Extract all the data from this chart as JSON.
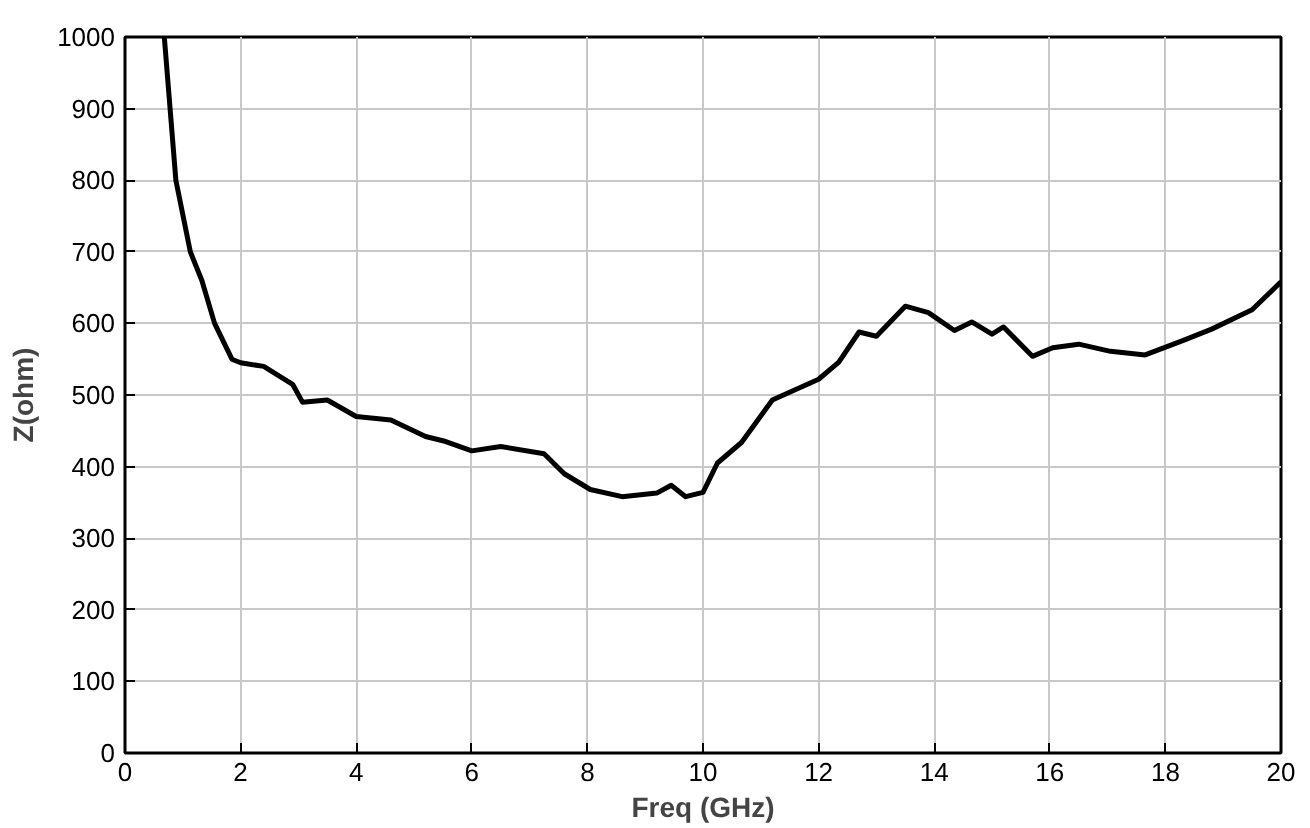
{
  "chart_data": {
    "type": "line",
    "xlabel": "Freq (GHz)",
    "ylabel": "Z(ohm)",
    "xlim": [
      0,
      20
    ],
    "ylim": [
      0,
      1000
    ],
    "xticks": [
      0,
      2,
      4,
      6,
      8,
      10,
      12,
      14,
      16,
      18,
      20
    ],
    "yticks": [
      0,
      100,
      200,
      300,
      400,
      500,
      600,
      700,
      800,
      900,
      1000
    ],
    "grid": true,
    "line_style": "solid",
    "series": [
      {
        "color": "#000000",
        "x": [
          0.68,
          0.88,
          1.13,
          1.33,
          1.55,
          1.85,
          2.0,
          2.4,
          2.9,
          3.07,
          3.5,
          4.0,
          4.6,
          5.2,
          5.55,
          6.0,
          6.5,
          7.25,
          7.6,
          8.05,
          8.6,
          9.2,
          9.45,
          9.7,
          10.0,
          10.25,
          10.67,
          11.2,
          12.0,
          12.35,
          12.7,
          13.0,
          13.5,
          13.9,
          14.35,
          14.65,
          15.0,
          15.2,
          15.7,
          16.05,
          16.5,
          17.05,
          17.65,
          18.3,
          18.8,
          19.5,
          20.0
        ],
        "values": [
          1000,
          800,
          700,
          660,
          600,
          550,
          545,
          540,
          515,
          490,
          493,
          470,
          465,
          442,
          435,
          422,
          428,
          418,
          390,
          368,
          358,
          363,
          374,
          358,
          364,
          405,
          434,
          493,
          522,
          546,
          588,
          582,
          624,
          615,
          590,
          602,
          585,
          595,
          554,
          566,
          571,
          561,
          556,
          576,
          592,
          619,
          658
        ]
      }
    ]
  }
}
